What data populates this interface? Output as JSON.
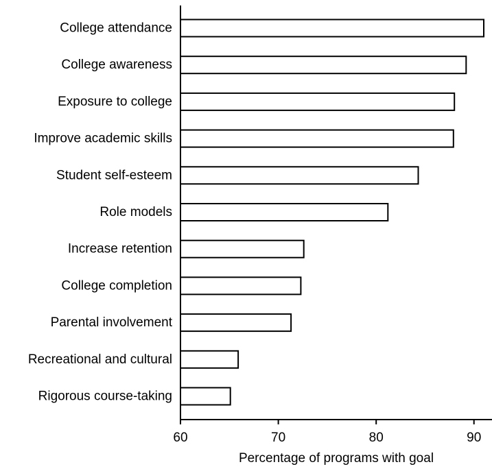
{
  "chart_data": {
    "type": "bar",
    "orientation": "horizontal",
    "title": "",
    "xlabel": "Percentage of programs with goal",
    "ylabel": "",
    "xlim": [
      60,
      91
    ],
    "x_ticks": [
      60,
      70,
      80,
      90
    ],
    "grid": false,
    "legend": "none",
    "categories": [
      "College attendance",
      "College awareness",
      "Exposure to college",
      "Improve academic skills",
      "Student self-esteem",
      "Role models",
      "Increase retention",
      "College completion",
      "Parental involvement",
      "Recreational and cultural",
      "Rigorous course-taking"
    ],
    "values": [
      91,
      89.2,
      88,
      87.9,
      84.3,
      81.2,
      72.6,
      72.3,
      71.3,
      65.9,
      65.1
    ],
    "colors": {
      "bar_fill": "#ffffff",
      "bar_stroke": "#000000",
      "axis": "#000000",
      "text": "#000000"
    }
  }
}
